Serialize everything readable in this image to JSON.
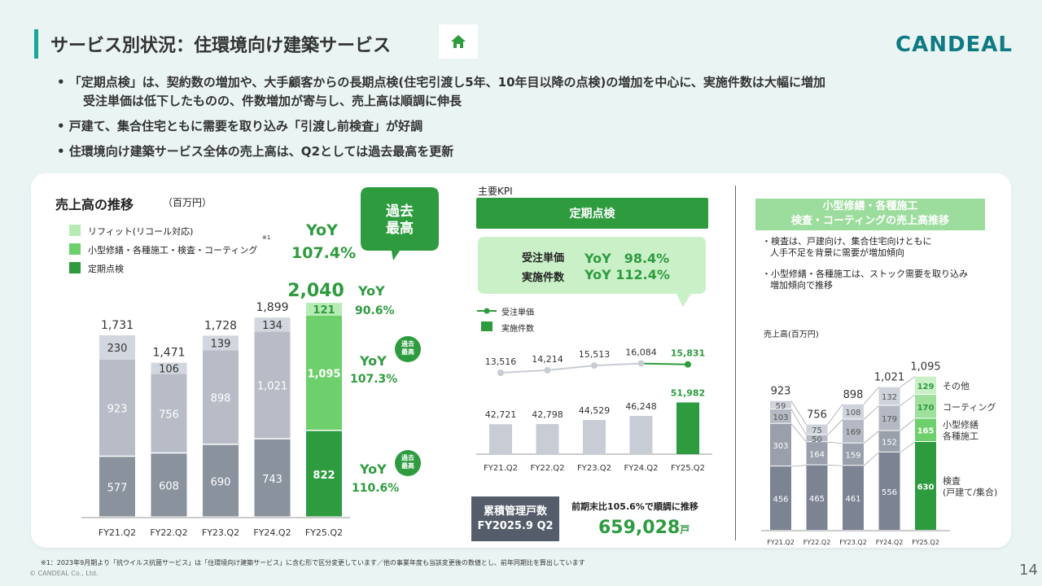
{
  "header": {
    "title": "サービス別状況：住環境向け建築サービス",
    "logo": "CANDEAL",
    "bullets": [
      "• 「定期点検」は、契約数の増加や、大手顧客からの長期点検(住宅引渡し5年、10年目以降の点検)の増加を中心に、実施件数は大幅に増加",
      "受注単価は低下したものの、件数増加が寄与し、売上高は順調に伸長",
      "• 戸建て、集合住宅ともに需要を取り込み「引渡し前検査」が好調",
      "• 住環境向け建築サービス全体の売上高は、Q2としては過去最高を更新"
    ]
  },
  "left": {
    "title": "売上高の推移",
    "unit": "（百万円）",
    "legend": [
      "リフィット(リコール対応)",
      "小型修繕・各種施工・検査・コーティング",
      "定期点検"
    ],
    "legend_note": "※1",
    "record_bubble": "過去\n最高",
    "total_yoy_label": "YoY",
    "total_yoy_value": "107.4%",
    "segment_yoy": [
      {
        "label": "YoY",
        "value": "90.6%"
      },
      {
        "label": "YoY",
        "value": "107.3%"
      },
      {
        "label": "YoY",
        "value": "110.6%"
      }
    ],
    "small_badge": "過去\n最高"
  },
  "middle": {
    "section_label": "主要KPI",
    "banner": "定期点検",
    "kpi_rows": [
      {
        "label": "受注単価",
        "value": "YoY　98.4%"
      },
      {
        "label": "実施件数",
        "value": "YoY 112.4%"
      }
    ],
    "legend": [
      "受注単価",
      "実施件数"
    ],
    "bottom_box": [
      "累積管理戸数",
      "FY2025.9 Q2"
    ],
    "bottom_note": "前期末比105.6%で順調に推移",
    "bottom_value": "659,028",
    "bottom_unit": "戸"
  },
  "right": {
    "banner": [
      "小型修繕・各種施工",
      "検査・コーティングの売上高推移"
    ],
    "notes": [
      "・検査は、戸建向け、集合住宅向けともに",
      "人手不足を背景に需要が増加傾向",
      "・小型修繕・各種施工は、ストック需要を取り込み",
      "増加傾向で推移"
    ],
    "unit": "売上高(百万円)",
    "legend": [
      "その他",
      "コーティング",
      "小型修繕\n各種施工",
      "検査\n(戸建て/集合)"
    ]
  },
  "chart_data": [
    {
      "type": "bar",
      "stacked": true,
      "categories": [
        "FY21.Q2",
        "FY22.Q2",
        "FY23.Q2",
        "FY24.Q2",
        "FY25.Q2"
      ],
      "series": [
        {
          "name": "定期点検",
          "values": [
            577,
            608,
            690,
            743,
            822
          ]
        },
        {
          "name": "小型修繕・各種施工・検査・コーティング",
          "values": [
            923,
            756,
            898,
            1021,
            1095
          ]
        },
        {
          "name": "リフィット(リコール対応)",
          "values": [
            230,
            106,
            139,
            134,
            121
          ]
        }
      ],
      "totals": [
        1731,
        1471,
        1728,
        1899,
        2040
      ],
      "colors": {
        "recent_1": "#2e9b3f",
        "recent_2": "#6ed06c",
        "recent_3": "#b6ecb4",
        "past_1": "#8a929e",
        "past_2": "#b8bcc6",
        "past_3": "#d2d6de"
      }
    },
    {
      "type": "bar",
      "categories": [
        "FY21.Q2",
        "FY22.Q2",
        "FY23.Q2",
        "FY24.Q2",
        "FY25.Q2"
      ],
      "series": [
        {
          "name": "実施件数",
          "values": [
            42721,
            42798,
            44529,
            46248,
            51982
          ]
        },
        {
          "name": "受注単価",
          "values": [
            13516,
            14214,
            15513,
            16084,
            15831
          ]
        }
      ]
    },
    {
      "type": "bar",
      "stacked": true,
      "categories": [
        "FY21.Q2",
        "FY22.Q2",
        "FY23.Q2",
        "FY24.Q2",
        "FY25.Q2"
      ],
      "series": [
        {
          "name": "検査(戸建て/集合)",
          "values": [
            456,
            465,
            461,
            556,
            630
          ]
        },
        {
          "name": "小型修繕・各種施工",
          "values": [
            303,
            164,
            159,
            152,
            165
          ]
        },
        {
          "name": "コーティング",
          "values": [
            103,
            50,
            169,
            179,
            170
          ]
        },
        {
          "name": "その他",
          "values": [
            59,
            75,
            108,
            132,
            129
          ]
        }
      ],
      "totals": [
        923,
        756,
        898,
        1021,
        1095
      ]
    }
  ],
  "footer": {
    "footnote": "※1：2023年9月期より「抗ウイルス抗菌サービス」は「住環境向け建築サービス」に含む形で区分変更しています／他の事業年度も当該変更後の数値とし、前年同期比を算出しています",
    "copyright": "© CANDEAL Co., Ltd.",
    "page": "14"
  }
}
